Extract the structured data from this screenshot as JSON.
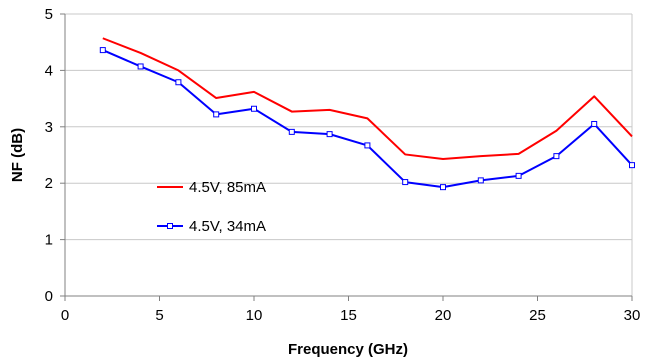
{
  "chart_data": {
    "type": "line",
    "title": "",
    "xlabel": "Frequency (GHz)",
    "ylabel": "NF (dB)",
    "xlim": [
      0,
      30
    ],
    "ylim": [
      0,
      5
    ],
    "xticks": [
      0,
      5,
      10,
      15,
      20,
      25,
      30
    ],
    "yticks": [
      0,
      1,
      2,
      3,
      4,
      5
    ],
    "grid": "horizontal",
    "legend_position": "center-left",
    "x": [
      2,
      4,
      6,
      8,
      10,
      12,
      14,
      16,
      18,
      20,
      22,
      24,
      26,
      28,
      30
    ],
    "series": [
      {
        "name": "4.5V, 85mA",
        "color": "#ff0000",
        "marker": "none",
        "values": [
          4.57,
          4.31,
          4.0,
          3.51,
          3.62,
          3.27,
          3.3,
          3.15,
          2.51,
          2.43,
          2.48,
          2.52,
          2.93,
          3.54,
          2.83
        ]
      },
      {
        "name": "4.5V, 34mA",
        "color": "#0000ff",
        "marker": "square",
        "values": [
          4.36,
          4.07,
          3.79,
          3.22,
          3.32,
          2.91,
          2.87,
          2.67,
          2.02,
          1.93,
          2.05,
          2.13,
          2.48,
          3.05,
          2.32
        ]
      }
    ]
  }
}
